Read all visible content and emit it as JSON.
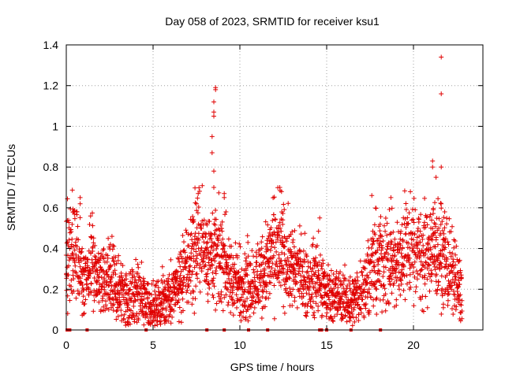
{
  "chart_data": {
    "type": "scatter",
    "title": "Day 058 of 2023, SRMTID for receiver ksu1",
    "xlabel": "GPS time / hours",
    "ylabel": "SRMTID / TECUs",
    "xlim": [
      0,
      24
    ],
    "ylim": [
      0,
      1.4
    ],
    "xticks": [
      0,
      5,
      10,
      15,
      20
    ],
    "yticks": [
      0,
      0.2,
      0.4,
      0.6,
      0.8,
      1,
      1.2,
      1.4
    ],
    "ytick_labels": [
      "0",
      "0.2",
      "0.4",
      "0.6",
      "0.8",
      "1",
      "1.2",
      "1.4"
    ],
    "grid": true,
    "marker": "+",
    "color": "#e00000",
    "trend": [
      [
        0.0,
        0.38
      ],
      [
        0.3,
        0.42
      ],
      [
        0.6,
        0.36
      ],
      [
        0.9,
        0.28
      ],
      [
        1.2,
        0.25
      ],
      [
        1.5,
        0.35
      ],
      [
        1.8,
        0.25
      ],
      [
        2.2,
        0.22
      ],
      [
        2.7,
        0.24
      ],
      [
        3.2,
        0.18
      ],
      [
        3.6,
        0.15
      ],
      [
        4.0,
        0.18
      ],
      [
        4.5,
        0.15
      ],
      [
        5.0,
        0.1
      ],
      [
        5.5,
        0.14
      ],
      [
        6.0,
        0.18
      ],
      [
        6.5,
        0.22
      ],
      [
        7.0,
        0.3
      ],
      [
        7.4,
        0.4
      ],
      [
        7.8,
        0.42
      ],
      [
        8.2,
        0.38
      ],
      [
        8.6,
        0.36
      ],
      [
        9.0,
        0.35
      ],
      [
        9.5,
        0.25
      ],
      [
        10.0,
        0.22
      ],
      [
        10.5,
        0.24
      ],
      [
        11.0,
        0.25
      ],
      [
        11.5,
        0.32
      ],
      [
        12.0,
        0.4
      ],
      [
        12.5,
        0.36
      ],
      [
        13.0,
        0.3
      ],
      [
        13.5,
        0.28
      ],
      [
        14.0,
        0.22
      ],
      [
        14.5,
        0.25
      ],
      [
        15.0,
        0.18
      ],
      [
        15.5,
        0.17
      ],
      [
        16.0,
        0.15
      ],
      [
        16.5,
        0.14
      ],
      [
        17.0,
        0.2
      ],
      [
        17.5,
        0.28
      ],
      [
        18.0,
        0.35
      ],
      [
        18.5,
        0.32
      ],
      [
        19.0,
        0.3
      ],
      [
        19.5,
        0.42
      ],
      [
        20.0,
        0.4
      ],
      [
        20.5,
        0.35
      ],
      [
        21.0,
        0.42
      ],
      [
        21.5,
        0.4
      ],
      [
        22.0,
        0.32
      ],
      [
        22.5,
        0.24
      ],
      [
        22.8,
        0.18
      ]
    ],
    "spikes": [
      [
        0.8,
        0.65
      ],
      [
        0.8,
        0.62
      ],
      [
        1.4,
        0.56
      ],
      [
        7.5,
        0.62
      ],
      [
        7.6,
        0.67
      ],
      [
        8.4,
        0.95
      ],
      [
        8.5,
        1.05
      ],
      [
        8.6,
        1.19
      ],
      [
        8.6,
        1.18
      ],
      [
        8.5,
        1.12
      ],
      [
        8.5,
        1.07
      ],
      [
        8.4,
        0.87
      ],
      [
        8.5,
        0.78
      ],
      [
        8.5,
        0.7
      ],
      [
        9.1,
        0.67
      ],
      [
        9.1,
        0.65
      ],
      [
        9.2,
        0.58
      ],
      [
        12.3,
        0.7
      ],
      [
        12.4,
        0.68
      ],
      [
        14.6,
        0.55
      ],
      [
        17.6,
        0.66
      ],
      [
        18.7,
        0.65
      ],
      [
        21.1,
        0.83
      ],
      [
        21.1,
        0.8
      ],
      [
        21.3,
        0.75
      ],
      [
        21.6,
        1.34
      ],
      [
        21.6,
        1.16
      ],
      [
        21.6,
        0.8
      ],
      [
        21.8,
        0.58
      ]
    ],
    "zero_points": [
      0.05,
      0.2,
      1.2,
      4.6,
      8.1,
      9.1,
      10.5,
      11.6,
      14.6,
      14.7,
      15.0,
      16.4,
      18.1
    ]
  }
}
